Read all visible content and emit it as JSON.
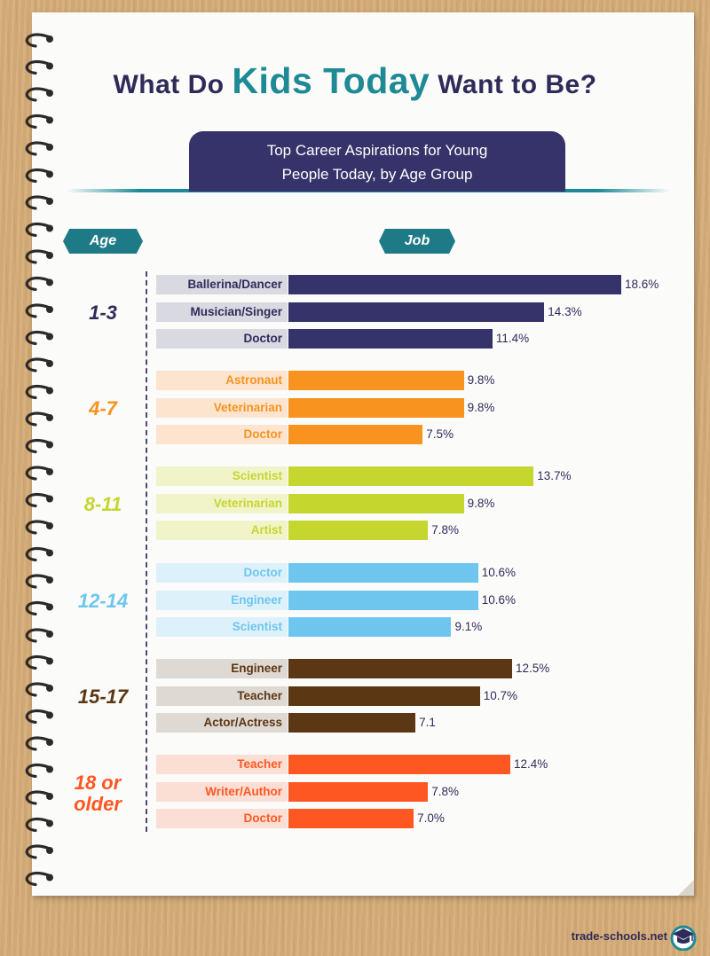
{
  "title": {
    "part1": "What Do ",
    "highlight": "Kids Today",
    "part2": " Want to Be?"
  },
  "subtitle_lines": [
    "Top Career Aspirations for Young",
    "People Today, by Age Group"
  ],
  "column_headers": {
    "age": "Age",
    "job": "Job"
  },
  "brand": "trade-schools.net",
  "colors": {
    "title": "#2f2b59",
    "highlight": "#1e8a96",
    "groups": [
      "#35336a",
      "#f7931e",
      "#c5d62e",
      "#6ec6ee",
      "#5c3713",
      "#ff5722"
    ],
    "label_backgrounds": [
      "#d9d9e2",
      "#fde4cf",
      "#f1f4c9",
      "#ddf1fb",
      "#dfd9d3",
      "#fbdfd4"
    ]
  },
  "chart_data": {
    "type": "bar",
    "orientation": "horizontal",
    "groups": [
      {
        "age": "1-3",
        "jobs": [
          "Ballerina/Dancer",
          "Musician/Singer",
          "Doctor"
        ],
        "values": [
          18.6,
          14.3,
          11.4
        ],
        "value_labels": [
          "18.6%",
          "14.3%",
          "11.4%"
        ]
      },
      {
        "age": "4-7",
        "jobs": [
          "Astronaut",
          "Veterinarian",
          "Doctor"
        ],
        "values": [
          9.8,
          9.8,
          7.5
        ],
        "value_labels": [
          "9.8%",
          "9.8%",
          "7.5%"
        ]
      },
      {
        "age": "8-11",
        "jobs": [
          "Scientist",
          "Veterinarian",
          "Artist"
        ],
        "values": [
          13.7,
          9.8,
          7.8
        ],
        "value_labels": [
          "13.7%",
          "9.8%",
          "7.8%"
        ]
      },
      {
        "age": "12-14",
        "jobs": [
          "Doctor",
          "Engineer",
          "Scientist"
        ],
        "values": [
          10.6,
          10.6,
          9.1
        ],
        "value_labels": [
          "10.6%",
          "10.6%",
          "9.1%"
        ]
      },
      {
        "age": "15-17",
        "jobs": [
          "Engineer",
          "Teacher",
          "Actor/Actress"
        ],
        "values": [
          12.5,
          10.7,
          7.1
        ],
        "value_labels": [
          "12.5%",
          "10.7%",
          "7.1"
        ]
      },
      {
        "age": "18 or older",
        "jobs": [
          "Teacher",
          "Writer/Author",
          "Doctor"
        ],
        "values": [
          12.4,
          7.8,
          7.0
        ],
        "value_labels": [
          "12.4%",
          "7.8%",
          "7.0%"
        ]
      }
    ],
    "xlim": [
      0,
      18.6
    ]
  }
}
